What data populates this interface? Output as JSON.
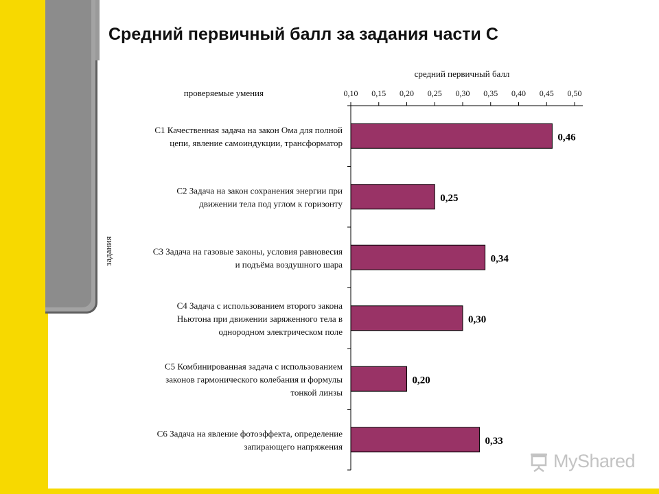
{
  "slide": {
    "title": "Средний первичный балл за задания части С"
  },
  "colors": {
    "accent_yellow": "#f7d900",
    "panel_gray": "#8c8c8c",
    "bar": "#993366"
  },
  "chart_data": {
    "type": "bar",
    "orientation": "horizontal",
    "title": "",
    "top_axis_title": "средний первичный балл",
    "category_header": "проверяемые умения",
    "ylabel": "задания",
    "xlim": [
      0.1,
      0.5
    ],
    "ticks": [
      "0,10",
      "0,15",
      "0,20",
      "0,25",
      "0,30",
      "0,35",
      "0,40",
      "0,45",
      "0,50"
    ],
    "tick_values": [
      0.1,
      0.15,
      0.2,
      0.25,
      0.3,
      0.35,
      0.4,
      0.45,
      0.5
    ],
    "grid": false,
    "categories": [
      [
        "С1 Качественная задача на закон Ома для полной",
        "цепи, явление самоиндукции, трансформатор"
      ],
      [
        "С2 Задача на закон сохранения энергии при",
        "движении тела под углом к горизонту"
      ],
      [
        "С3 Задача на газовые законы, условия равновесия",
        "и подъёма воздушного шара"
      ],
      [
        "С4 Задача с использованием второго закона",
        "Ньютона при движении заряженного тела в",
        "однородном электрическом поле"
      ],
      [
        "С5 Комбинированная задача с использованием",
        "законов гармонического колебания и формулы",
        "тонкой линзы"
      ],
      [
        "С6 Задача на явление фотоэффекта, определение",
        "запирающего напряжения"
      ]
    ],
    "values": [
      0.46,
      0.25,
      0.34,
      0.3,
      0.2,
      0.33
    ],
    "value_labels": [
      "0,46",
      "0,25",
      "0,34",
      "0,30",
      "0,20",
      "0,33"
    ]
  },
  "watermark": {
    "text": "MyShared",
    "icon": "projector-screen-icon"
  }
}
